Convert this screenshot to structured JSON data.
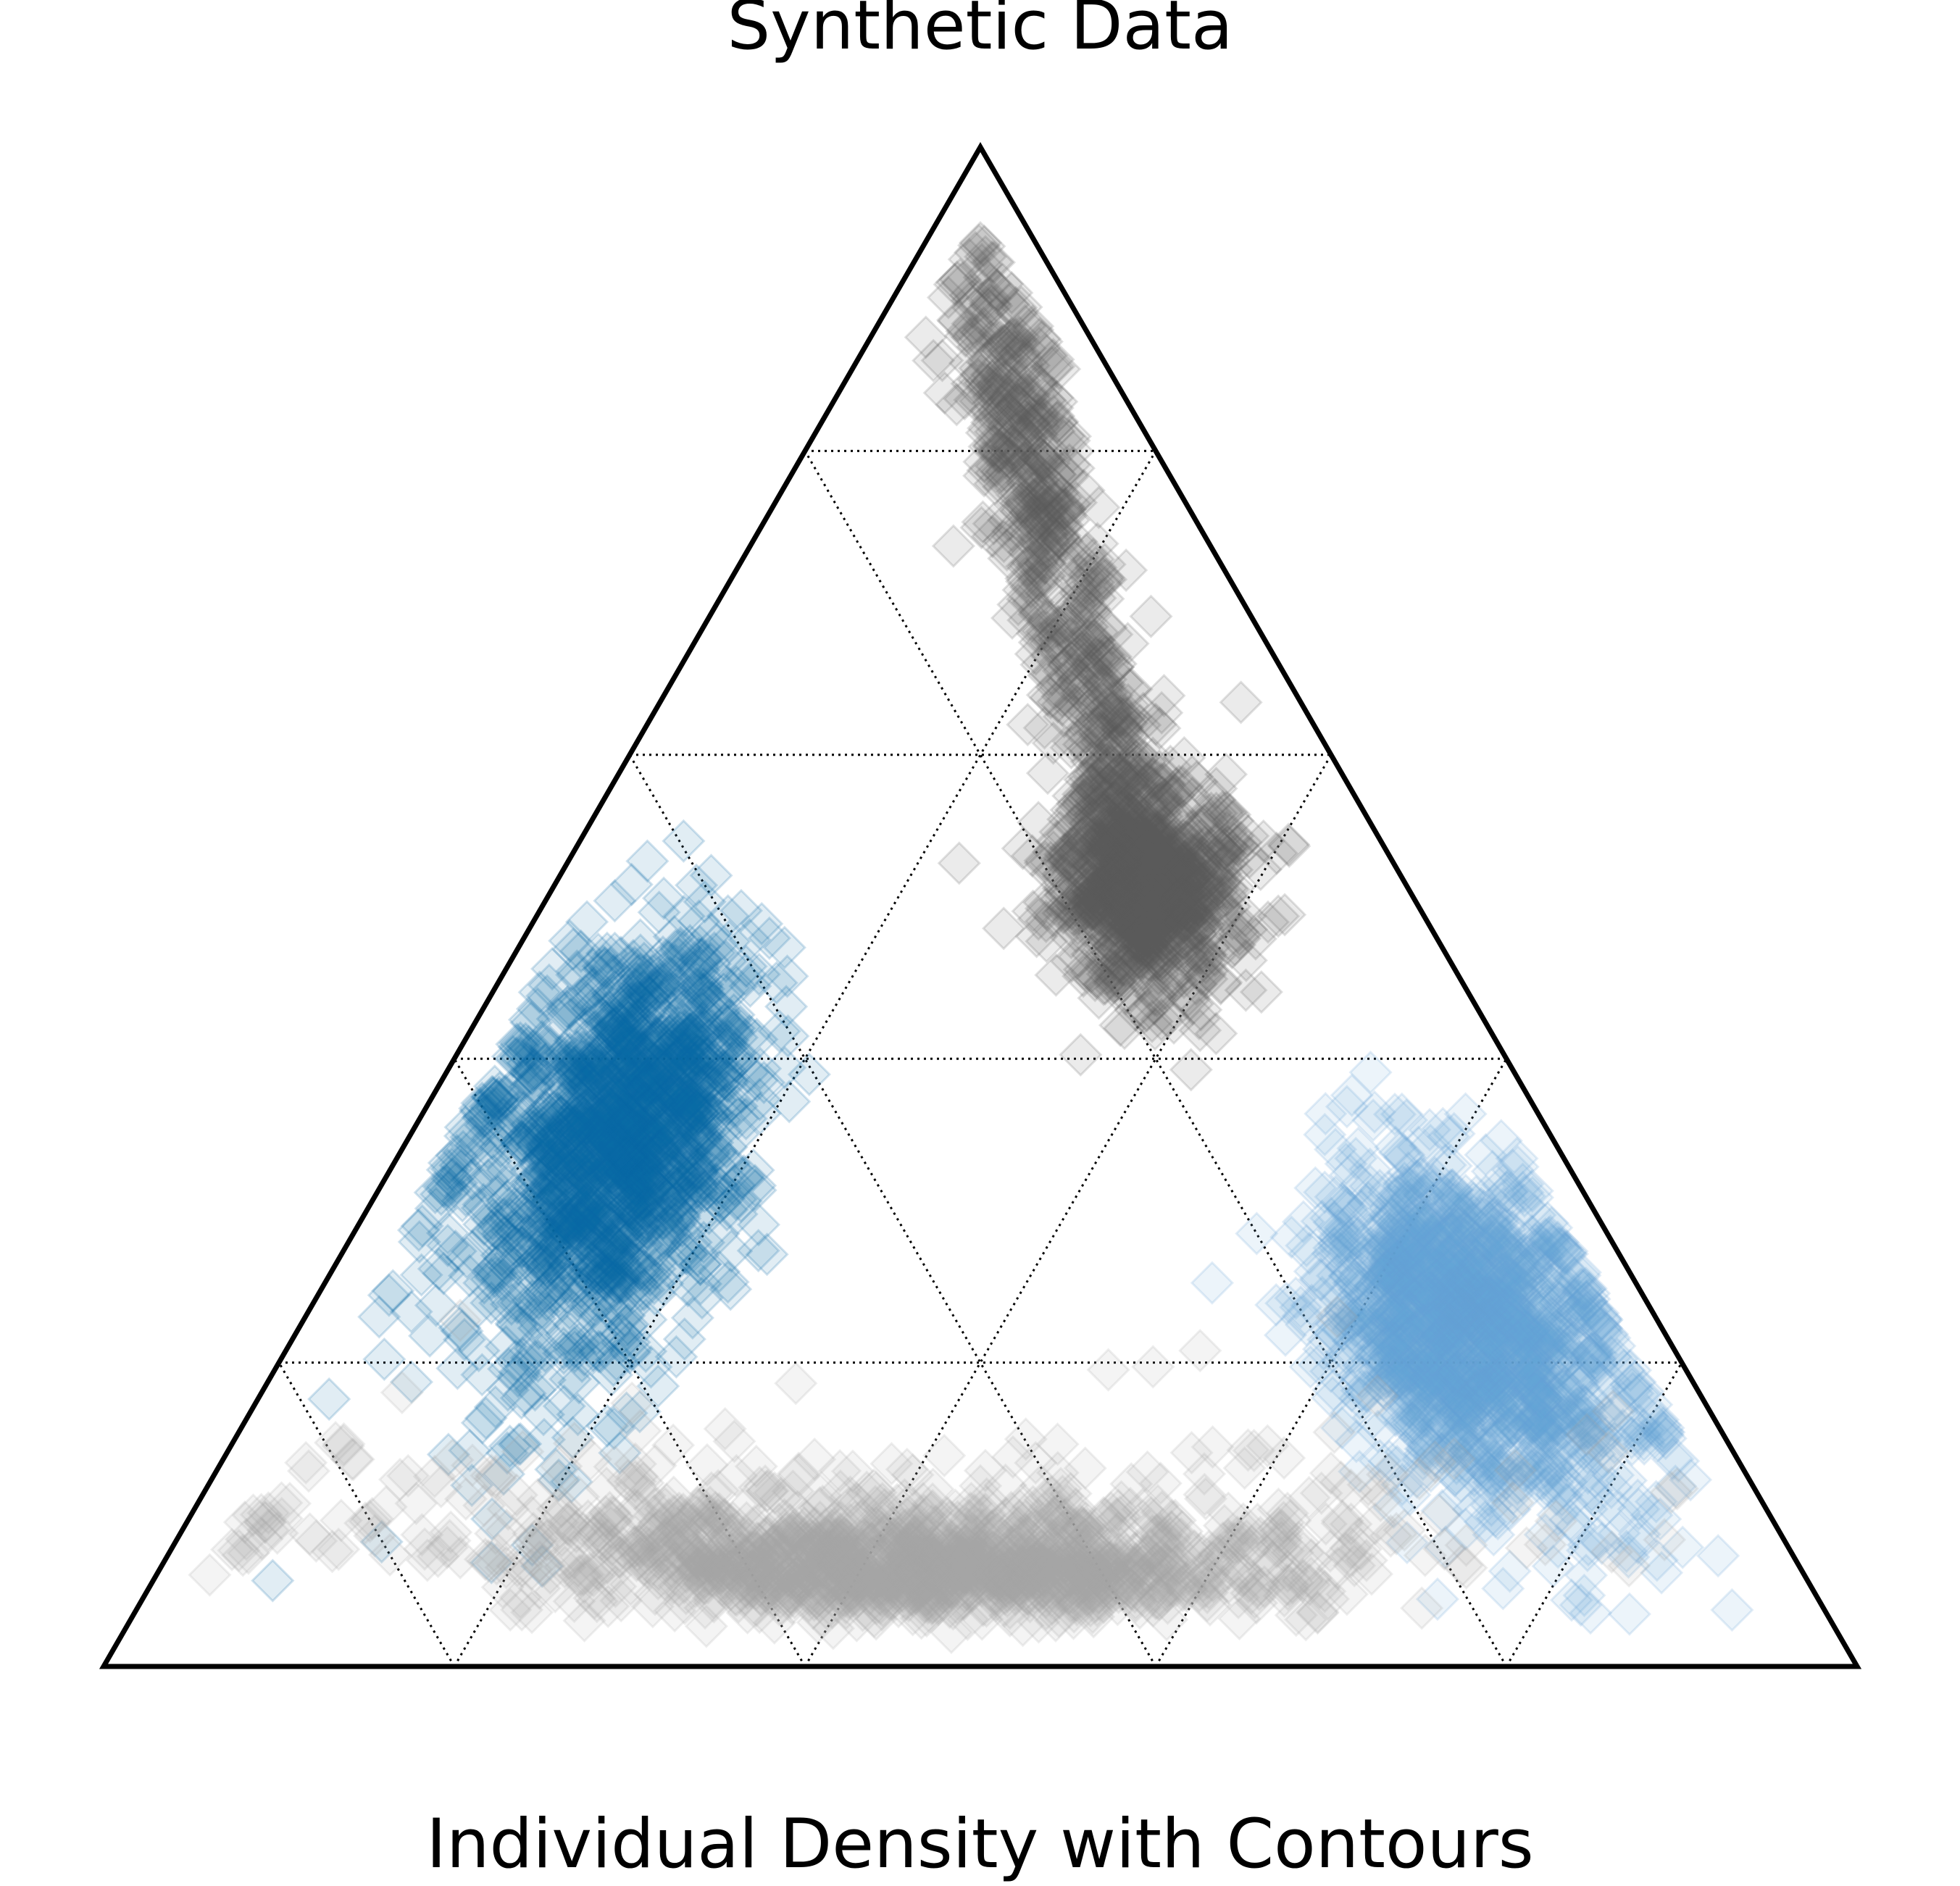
{
  "chart_data": {
    "type": "scatter",
    "subtype": "ternary",
    "title": "Synthetic Data",
    "bottom_label": "Individual Density with Contours",
    "grid": true,
    "grid_style": "dotted",
    "marker": "diamond",
    "grid_fractions": [
      0.2,
      0.4,
      0.6,
      0.8
    ],
    "clusters": [
      {
        "color": "#5e5e5e",
        "opacity": 0.12,
        "points": 1400,
        "center": [
          0.51,
          0.34,
          0.15
        ],
        "spread": [
          0.05,
          0.035,
          0.035
        ],
        "tail_to": [
          0.9,
          0.05,
          0.05
        ]
      },
      {
        "color": "#0868a6",
        "opacity": 0.12,
        "points": 1400,
        "center": [
          0.35,
          0.12,
          0.53
        ],
        "spread": [
          0.1,
          0.045,
          0.05
        ]
      },
      {
        "color": "#66a3d6",
        "opacity": 0.12,
        "points": 1400,
        "center": [
          0.22,
          0.67,
          0.11
        ],
        "spread": [
          0.07,
          0.06,
          0.045
        ]
      },
      {
        "color": "#a8a8a8",
        "opacity": 0.12,
        "points": 1400,
        "center": [
          0.07,
          0.43,
          0.5
        ],
        "spread": [
          0.015,
          0.17,
          0.17
        ]
      }
    ]
  }
}
